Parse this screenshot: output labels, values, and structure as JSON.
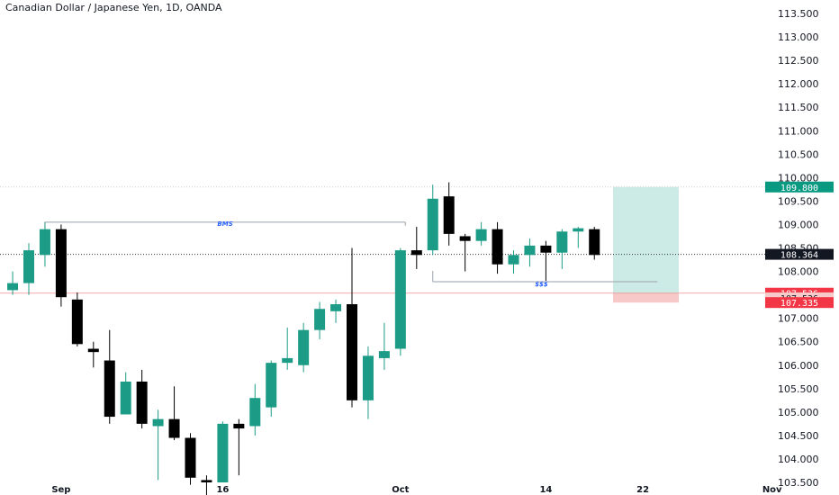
{
  "header": {
    "title": "Canadian Dollar / Japanese Yen, 1D, OANDA"
  },
  "colors": {
    "up": "#089981",
    "up_body": "#1c9c86",
    "down": "#000000",
    "target_zone": "#cdebe6",
    "stop_zone": "#f7c9c9",
    "bms_line": "#9aa1ab",
    "dotted_line": "#c7cbd3",
    "stop_line": "#f08d8d",
    "badge_green": "#089981",
    "badge_black": "#131722",
    "badge_red": "#f23645"
  },
  "chart_data": {
    "type": "candlestick",
    "title": "Canadian Dollar / Japanese Yen, 1D, OANDA",
    "ylim": [
      103.5,
      113.6
    ],
    "y_ticks": [
      "113.500",
      "113.000",
      "112.500",
      "112.000",
      "111.500",
      "111.000",
      "110.500",
      "110.000",
      "109.500",
      "109.000",
      "108.500",
      "108.000",
      "107.500",
      "107.000",
      "106.500",
      "106.000",
      "105.500",
      "105.000",
      "104.500",
      "104.000",
      "103.500"
    ],
    "x_ticks": [
      {
        "label": "Sep",
        "day": 2
      },
      {
        "label": "16",
        "day": 12
      },
      {
        "label": "Oct",
        "day": 23
      },
      {
        "label": "14",
        "day": 32
      },
      {
        "label": "22",
        "day": 38
      },
      {
        "label": "Nov",
        "day": 46
      }
    ],
    "candles": [
      {
        "day": -1,
        "o": 107.6,
        "h": 108.0,
        "l": 107.5,
        "c": 107.75
      },
      {
        "day": 0,
        "o": 107.75,
        "h": 108.6,
        "l": 107.5,
        "c": 108.45
      },
      {
        "day": 1,
        "o": 108.35,
        "h": 109.05,
        "l": 108.1,
        "c": 108.9
      },
      {
        "day": 2,
        "o": 108.9,
        "h": 109.0,
        "l": 107.25,
        "c": 107.45
      },
      {
        "day": 3,
        "o": 107.4,
        "h": 107.55,
        "l": 106.4,
        "c": 106.45
      },
      {
        "day": 4,
        "o": 106.35,
        "h": 106.5,
        "l": 105.95,
        "c": 106.28
      },
      {
        "day": 5,
        "o": 106.1,
        "h": 106.75,
        "l": 104.75,
        "c": 104.9
      },
      {
        "day": 6,
        "o": 104.95,
        "h": 105.85,
        "l": 104.95,
        "c": 105.65
      },
      {
        "day": 7,
        "o": 105.65,
        "h": 105.9,
        "l": 104.65,
        "c": 104.75
      },
      {
        "day": 8,
        "o": 104.7,
        "h": 105.05,
        "l": 103.55,
        "c": 104.85
      },
      {
        "day": 9,
        "o": 104.85,
        "h": 105.55,
        "l": 104.4,
        "c": 104.45
      },
      {
        "day": 10,
        "o": 104.45,
        "h": 104.55,
        "l": 103.45,
        "c": 103.6
      },
      {
        "day": 11,
        "o": 103.55,
        "h": 103.65,
        "l": 103.2,
        "c": 103.5
      },
      {
        "day": 12,
        "o": 103.5,
        "h": 104.8,
        "l": 103.5,
        "c": 104.75
      },
      {
        "day": 13,
        "o": 104.75,
        "h": 104.85,
        "l": 103.65,
        "c": 104.65
      },
      {
        "day": 14,
        "o": 104.7,
        "h": 105.6,
        "l": 104.5,
        "c": 105.3
      },
      {
        "day": 15,
        "o": 105.1,
        "h": 106.1,
        "l": 104.9,
        "c": 106.05
      },
      {
        "day": 16,
        "o": 106.05,
        "h": 106.8,
        "l": 105.9,
        "c": 106.15
      },
      {
        "day": 17,
        "o": 106.0,
        "h": 106.9,
        "l": 105.85,
        "c": 106.75
      },
      {
        "day": 18,
        "o": 106.75,
        "h": 107.35,
        "l": 106.55,
        "c": 107.2
      },
      {
        "day": 19,
        "o": 107.15,
        "h": 107.4,
        "l": 106.9,
        "c": 107.3
      },
      {
        "day": 20,
        "o": 107.3,
        "h": 108.5,
        "l": 105.1,
        "c": 105.25
      },
      {
        "day": 21,
        "o": 105.25,
        "h": 106.4,
        "l": 104.85,
        "c": 106.2
      },
      {
        "day": 22,
        "o": 106.15,
        "h": 106.9,
        "l": 105.9,
        "c": 106.3
      },
      {
        "day": 23,
        "o": 106.35,
        "h": 108.5,
        "l": 106.2,
        "c": 108.45
      },
      {
        "day": 24,
        "o": 108.45,
        "h": 108.95,
        "l": 108.05,
        "c": 108.35
      },
      {
        "day": 25,
        "o": 108.45,
        "h": 109.85,
        "l": 108.35,
        "c": 109.55
      },
      {
        "day": 26,
        "o": 109.6,
        "h": 109.9,
        "l": 108.55,
        "c": 108.8
      },
      {
        "day": 27,
        "o": 108.75,
        "h": 108.8,
        "l": 108.0,
        "c": 108.65
      },
      {
        "day": 28,
        "o": 108.65,
        "h": 109.05,
        "l": 108.55,
        "c": 108.9
      },
      {
        "day": 29,
        "o": 108.9,
        "h": 109.05,
        "l": 107.95,
        "c": 108.15
      },
      {
        "day": 30,
        "o": 108.15,
        "h": 108.45,
        "l": 107.95,
        "c": 108.35
      },
      {
        "day": 31,
        "o": 108.35,
        "h": 108.7,
        "l": 108.1,
        "c": 108.55
      },
      {
        "day": 32,
        "o": 108.55,
        "h": 108.65,
        "l": 107.8,
        "c": 108.4
      },
      {
        "day": 33,
        "o": 108.4,
        "h": 108.9,
        "l": 108.05,
        "c": 108.85
      },
      {
        "day": 34,
        "o": 108.85,
        "h": 108.95,
        "l": 108.5,
        "c": 108.92
      },
      {
        "day": 35,
        "o": 108.9,
        "h": 108.95,
        "l": 108.25,
        "c": 108.35
      }
    ],
    "annotations": [
      {
        "label": "BMS",
        "price": 109.05
      },
      {
        "label": "$$$",
        "price": 107.78
      }
    ],
    "position": {
      "target": 109.8,
      "entry": 107.536,
      "stop": 107.335
    },
    "price_labels": [
      {
        "text": "109.800",
        "price": 109.8,
        "style": "green"
      },
      {
        "text": "108.364",
        "price": 108.364,
        "style": "black"
      },
      {
        "text": "107.536",
        "price": 107.536,
        "style": "red"
      },
      {
        "text": "107.536",
        "price": 107.436,
        "style": "black_on_pink"
      },
      {
        "text": "107.335",
        "price": 107.335,
        "style": "red"
      }
    ]
  }
}
